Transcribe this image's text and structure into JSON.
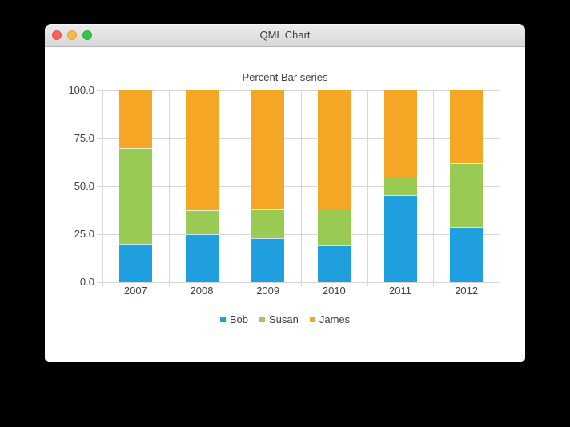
{
  "window": {
    "title": "QML Chart",
    "traffic_lights": [
      {
        "name": "close",
        "color": "#ff5f57"
      },
      {
        "name": "minimize",
        "color": "#fdbc40"
      },
      {
        "name": "zoom",
        "color": "#33c748"
      }
    ]
  },
  "chart_data": {
    "type": "bar",
    "stacking": "percent",
    "title": "Percent Bar series",
    "categories": [
      "2007",
      "2008",
      "2009",
      "2010",
      "2011",
      "2012"
    ],
    "series": [
      {
        "name": "Bob",
        "color": "#209fdf",
        "values": [
          2,
          2,
          3,
          4,
          5,
          6
        ]
      },
      {
        "name": "Susan",
        "color": "#99ca53",
        "values": [
          5,
          1,
          2,
          4,
          1,
          7
        ]
      },
      {
        "name": "James",
        "color": "#f6a625",
        "values": [
          3,
          5,
          8,
          13,
          5,
          8
        ]
      }
    ],
    "percent_totals_note": "each category stacked to 100%",
    "y_axis": {
      "tick_values": [
        0,
        25,
        50,
        75,
        100
      ],
      "tick_labels": [
        "0.0",
        "25.0",
        "50.0",
        "75.0",
        "100.0"
      ],
      "range": [
        0,
        100
      ]
    },
    "grid": true,
    "legend_position": "bottom",
    "text_color": "#3d4045",
    "grid_color": "#d7d7d7"
  }
}
